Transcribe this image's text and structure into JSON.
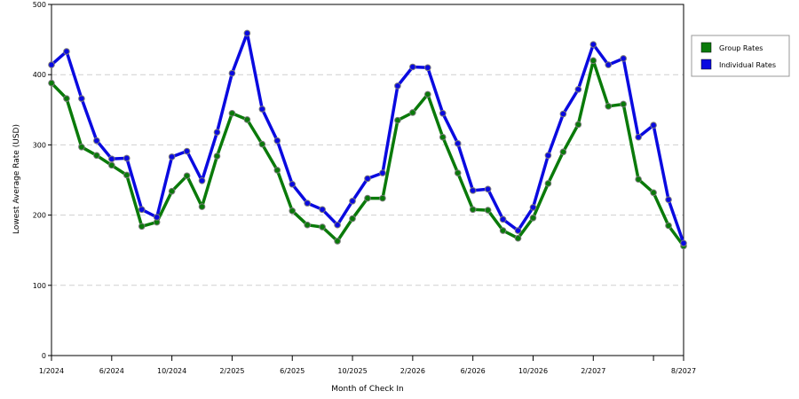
{
  "chart_data": {
    "type": "line",
    "xlabel": "Month of Check In",
    "ylabel": "Lowest Average Rate (USD)",
    "ylim": [
      0,
      500
    ],
    "yticks": [
      0,
      100,
      200,
      300,
      400,
      500
    ],
    "xlim": [
      0,
      42
    ],
    "xticks": [
      {
        "i": 0,
        "label": "1/2024"
      },
      {
        "i": 4,
        "label": "6/2024"
      },
      {
        "i": 8,
        "label": "10/2024"
      },
      {
        "i": 12,
        "label": "2/2025"
      },
      {
        "i": 16,
        "label": "6/2025"
      },
      {
        "i": 20,
        "label": "10/2025"
      },
      {
        "i": 24,
        "label": "2/2026"
      },
      {
        "i": 28,
        "label": "6/2026"
      },
      {
        "i": 32,
        "label": "10/2026"
      },
      {
        "i": 36,
        "label": "2/2027"
      },
      {
        "i": 40,
        "label": ""
      },
      {
        "i": 42,
        "label": "8/2027"
      }
    ],
    "grid": "horizontal dashed",
    "legend_position": "right",
    "series": [
      {
        "name": "Group Rates",
        "color": "#0a7a0a",
        "values": [
          388,
          366,
          297,
          285,
          271,
          257,
          184,
          190,
          234,
          256,
          212,
          284,
          345,
          336,
          301,
          264,
          206,
          186,
          183,
          163,
          195,
          224,
          224,
          335,
          346,
          372,
          311,
          260,
          208,
          207,
          178,
          167,
          196,
          245,
          290,
          329,
          420,
          355,
          358,
          251,
          232,
          185,
          156
        ]
      },
      {
        "name": "Individual Rates",
        "color": "#0a0ae0",
        "values": [
          414,
          433,
          366,
          306,
          280,
          281,
          208,
          197,
          283,
          291,
          249,
          318,
          402,
          459,
          351,
          306,
          244,
          217,
          208,
          186,
          220,
          252,
          260,
          384,
          411,
          410,
          345,
          302,
          235,
          237,
          194,
          178,
          211,
          285,
          344,
          379,
          443,
          414,
          423,
          311,
          328,
          222,
          160
        ]
      }
    ]
  }
}
